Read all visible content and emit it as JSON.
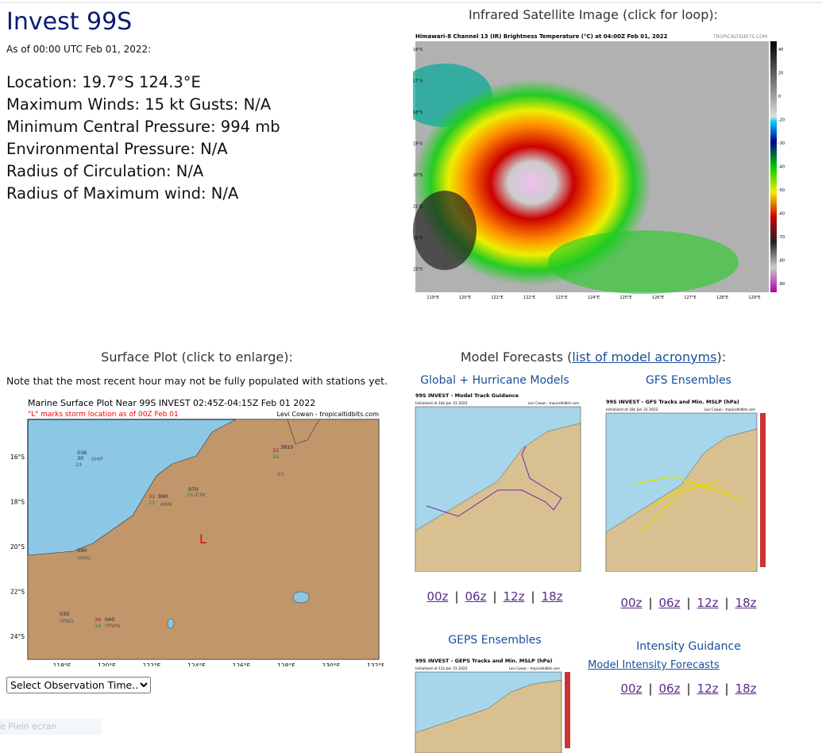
{
  "header": {
    "title": "Invest 99S",
    "as_of": "As of 00:00 UTC Feb 01, 2022:"
  },
  "details": [
    "Location: 19.7°S 124.3°E",
    "Maximum Winds: 15 kt  Gusts: N/A",
    "Minimum Central Pressure: 994 mb",
    "Environmental Pressure: N/A",
    "Radius of Circulation: N/A",
    "Radius of Maximum wind: N/A"
  ],
  "satellite": {
    "heading": "Infrared Satellite Image (click for loop):",
    "image_title": "Himawari-8 Channel 13 (IR) Brightness Temperature (°C) at 04:00Z Feb 01, 2022",
    "credit": "TROPICALTIDBITS.COM",
    "lat_labels": [
      "16°S",
      "17°S",
      "18°S",
      "19°S",
      "20°S",
      "21°S",
      "22°S",
      "23°S"
    ],
    "lon_labels": [
      "119°E",
      "120°E",
      "121°E",
      "122°E",
      "123°E",
      "124°E",
      "125°E",
      "126°E",
      "127°E",
      "128°E",
      "129°E"
    ],
    "colorbar_labels": [
      "40",
      "20",
      "0",
      "-20",
      "-30",
      "-40",
      "-50",
      "-60",
      "-70",
      "-80",
      "-90"
    ]
  },
  "surface": {
    "heading": "Surface Plot (click to enlarge):",
    "note": "Note that the most recent hour may not be fully populated with stations yet.",
    "plot_title": "Marine Surface Plot Near 99S INVEST 02:45Z-04:15Z Feb 01 2022",
    "plot_subtitle": "\"L\" marks storm location as of 00Z Feb 01",
    "credit": "Levi Cowan - tropicaltidbits.com",
    "storm_marker": "L",
    "lat_labels": [
      "16°S",
      "18°S",
      "20°S",
      "22°S",
      "24°S"
    ],
    "lon_labels": [
      "118°E",
      "120°E",
      "122°E",
      "124°E",
      "126°E",
      "128°E",
      "130°E",
      "132°E"
    ],
    "stations": [
      "036",
      "30",
      "24",
      "SHIP",
      "30",
      "010",
      "32",
      "24",
      "23",
      "970",
      "26",
      "ICIN",
      "990",
      "31",
      "22",
      "ARM",
      "990",
      "YPPD",
      "030",
      "YPBG",
      "040",
      "34",
      "14",
      "YPWN"
    ],
    "select": "Select Observation Time..."
  },
  "models": {
    "heading_prefix": "Model Forecasts (",
    "link": "list of model acronyms",
    "heading_suffix": "):",
    "separator": "|",
    "global": {
      "heading": "Global + Hurricane Models",
      "plot_title": "99S INVEST - Model Track Guidance",
      "init": "Initialized at 18z Jan 31 2022",
      "credit": "Levi Cowan - tropicaltidbits.com",
      "times": [
        "00z",
        "06z",
        "12z",
        "18z"
      ]
    },
    "gfs": {
      "heading": "GFS Ensembles",
      "plot_title": "99S INVEST - GFS Tracks and Min. MSLP (hPa)",
      "init": "Initialized at 18z Jan 31 2022",
      "credit": "Levi Cowan - tropicaltidbits.com",
      "times": [
        "00z",
        "06z",
        "12z",
        "18z"
      ]
    },
    "geps": {
      "heading": "GEPS Ensembles",
      "plot_title": "99S INVEST - GEPS Tracks and Min. MSLP (hPa)",
      "init": "Initialized at 12z Jan 31 2022",
      "credit": "Levi Cowan - tropicaltidbits.com"
    },
    "intensity": {
      "heading": "Intensity Guidance",
      "link": "Model Intensity Forecasts",
      "times": [
        "00z",
        "06z",
        "12z",
        "18z"
      ]
    }
  },
  "fullscreen_hint": "e Plein ecran"
}
